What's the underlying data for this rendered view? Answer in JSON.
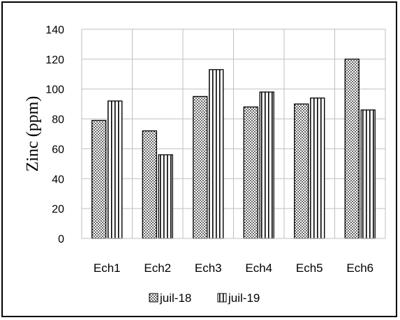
{
  "chart_data": {
    "type": "bar",
    "ylabel": "Zinc (ppm)",
    "xlabel": "",
    "ylim": [
      0,
      140
    ],
    "yticks": [
      0,
      20,
      40,
      60,
      80,
      100,
      120,
      140
    ],
    "grid": true,
    "legend_position": "bottom",
    "categories": [
      "Ech1",
      "Ech2",
      "Ech3",
      "Ech4",
      "Ech5",
      "Ech6"
    ],
    "series": [
      {
        "name": "juil-18",
        "pattern": "dots",
        "values": [
          79,
          72,
          95,
          88,
          90,
          120
        ]
      },
      {
        "name": "juil-19",
        "pattern": "vertical-stripes",
        "values": [
          92,
          56,
          113,
          98,
          94,
          86
        ]
      }
    ]
  }
}
